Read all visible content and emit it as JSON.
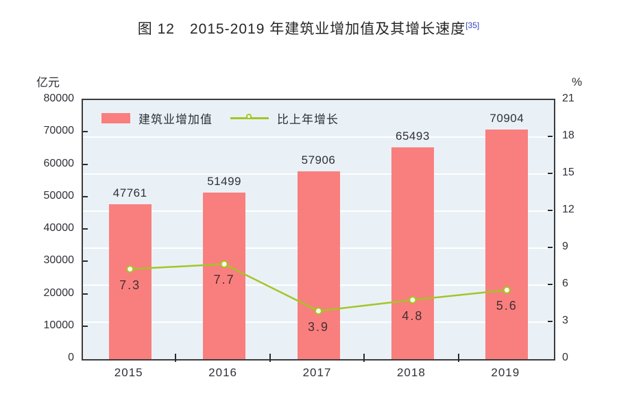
{
  "title": {
    "text": "图 12　2015-2019 年建筑业增加值及其增长速度",
    "superscript": "[35]",
    "superscript_color": "#3344bb"
  },
  "chart_data": {
    "type": "bar",
    "subtype": "bar+line combo",
    "categories": [
      "2015",
      "2016",
      "2017",
      "2018",
      "2019"
    ],
    "series": [
      {
        "name": "建筑业增加值",
        "type": "bar",
        "axis": "left",
        "unit": "亿元",
        "values": [
          47761,
          51499,
          57906,
          65493,
          70904
        ],
        "color": "#f97f7e"
      },
      {
        "name": "比上年增长",
        "type": "line",
        "axis": "right",
        "unit": "%",
        "values": [
          7.3,
          7.7,
          3.9,
          4.8,
          5.6
        ],
        "color": "#a5c427",
        "marker_fill": "#fbfdea"
      }
    ],
    "left_axis": {
      "label": "亿元",
      "min": 0,
      "max": 80000,
      "step": 10000,
      "ticks": [
        "80000",
        "70000",
        "60000",
        "50000",
        "40000",
        "30000",
        "20000",
        "10000",
        "0"
      ]
    },
    "right_axis": {
      "label": "%",
      "min": 0,
      "max": 21,
      "step": 3,
      "ticks": [
        "21",
        "18",
        "15",
        "12",
        "9",
        "6",
        "3",
        "0"
      ]
    },
    "legend_position": "top-left-inside",
    "grid": "horizontal gridlines at right-axis steps, white",
    "plot_background": "#e9f1f6",
    "plot_border_color": "#3b3b3b",
    "gridline_color": "#ffffff",
    "text_color": "#2f3038"
  }
}
